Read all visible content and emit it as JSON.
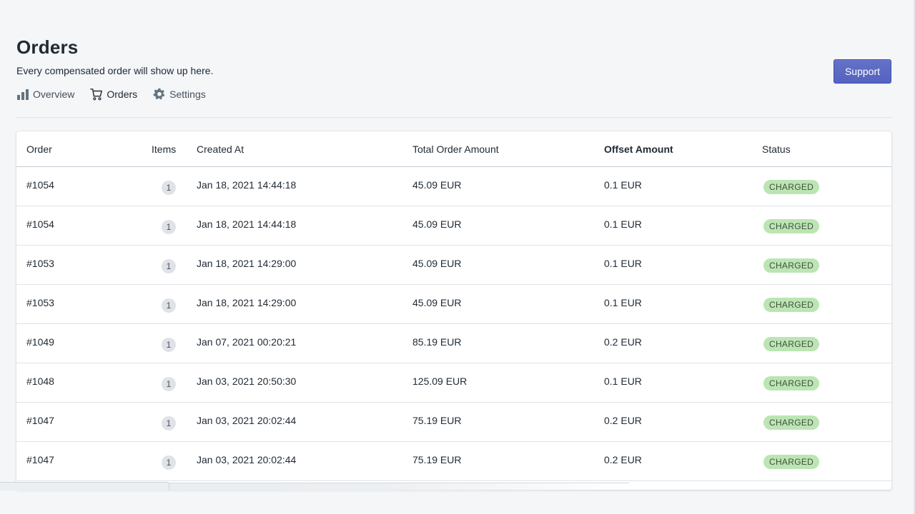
{
  "header": {
    "title": "Orders",
    "subtitle": "Every compensated order will show up here.",
    "support_label": "Support"
  },
  "nav": {
    "items": [
      {
        "label": "Overview",
        "icon": "bar-chart-icon"
      },
      {
        "label": "Orders",
        "icon": "cart-icon",
        "active": true
      },
      {
        "label": "Settings",
        "icon": "gear-icon"
      }
    ]
  },
  "table": {
    "columns": [
      "Order",
      "Items",
      "Created At",
      "Total Order Amount",
      "Offset Amount",
      "Status"
    ],
    "sorted_column": "Offset Amount",
    "rows": [
      {
        "order": "#1054",
        "items": "1",
        "created_at": "Jan 18, 2021 14:44:18",
        "total": "45.09 EUR",
        "offset": "0.1 EUR",
        "status": "CHARGED"
      },
      {
        "order": "#1054",
        "items": "1",
        "created_at": "Jan 18, 2021 14:44:18",
        "total": "45.09 EUR",
        "offset": "0.1 EUR",
        "status": "CHARGED"
      },
      {
        "order": "#1053",
        "items": "1",
        "created_at": "Jan 18, 2021 14:29:00",
        "total": "45.09 EUR",
        "offset": "0.1 EUR",
        "status": "CHARGED"
      },
      {
        "order": "#1053",
        "items": "1",
        "created_at": "Jan 18, 2021 14:29:00",
        "total": "45.09 EUR",
        "offset": "0.1 EUR",
        "status": "CHARGED"
      },
      {
        "order": "#1049",
        "items": "1",
        "created_at": "Jan 07, 2021 00:20:21",
        "total": "85.19 EUR",
        "offset": "0.2 EUR",
        "status": "CHARGED"
      },
      {
        "order": "#1048",
        "items": "1",
        "created_at": "Jan 03, 2021 20:50:30",
        "total": "125.09 EUR",
        "offset": "0.1 EUR",
        "status": "CHARGED"
      },
      {
        "order": "#1047",
        "items": "1",
        "created_at": "Jan 03, 2021 20:02:44",
        "total": "75.19 EUR",
        "offset": "0.2 EUR",
        "status": "CHARGED"
      },
      {
        "order": "#1047",
        "items": "1",
        "created_at": "Jan 03, 2021 20:02:44",
        "total": "75.19 EUR",
        "offset": "0.2 EUR",
        "status": "CHARGED"
      }
    ]
  },
  "colors": {
    "background": "#f4f6f8",
    "accent": "#5c6ac4",
    "status_success_bg": "#bbe5b3",
    "status_success_text": "#414f3e"
  }
}
